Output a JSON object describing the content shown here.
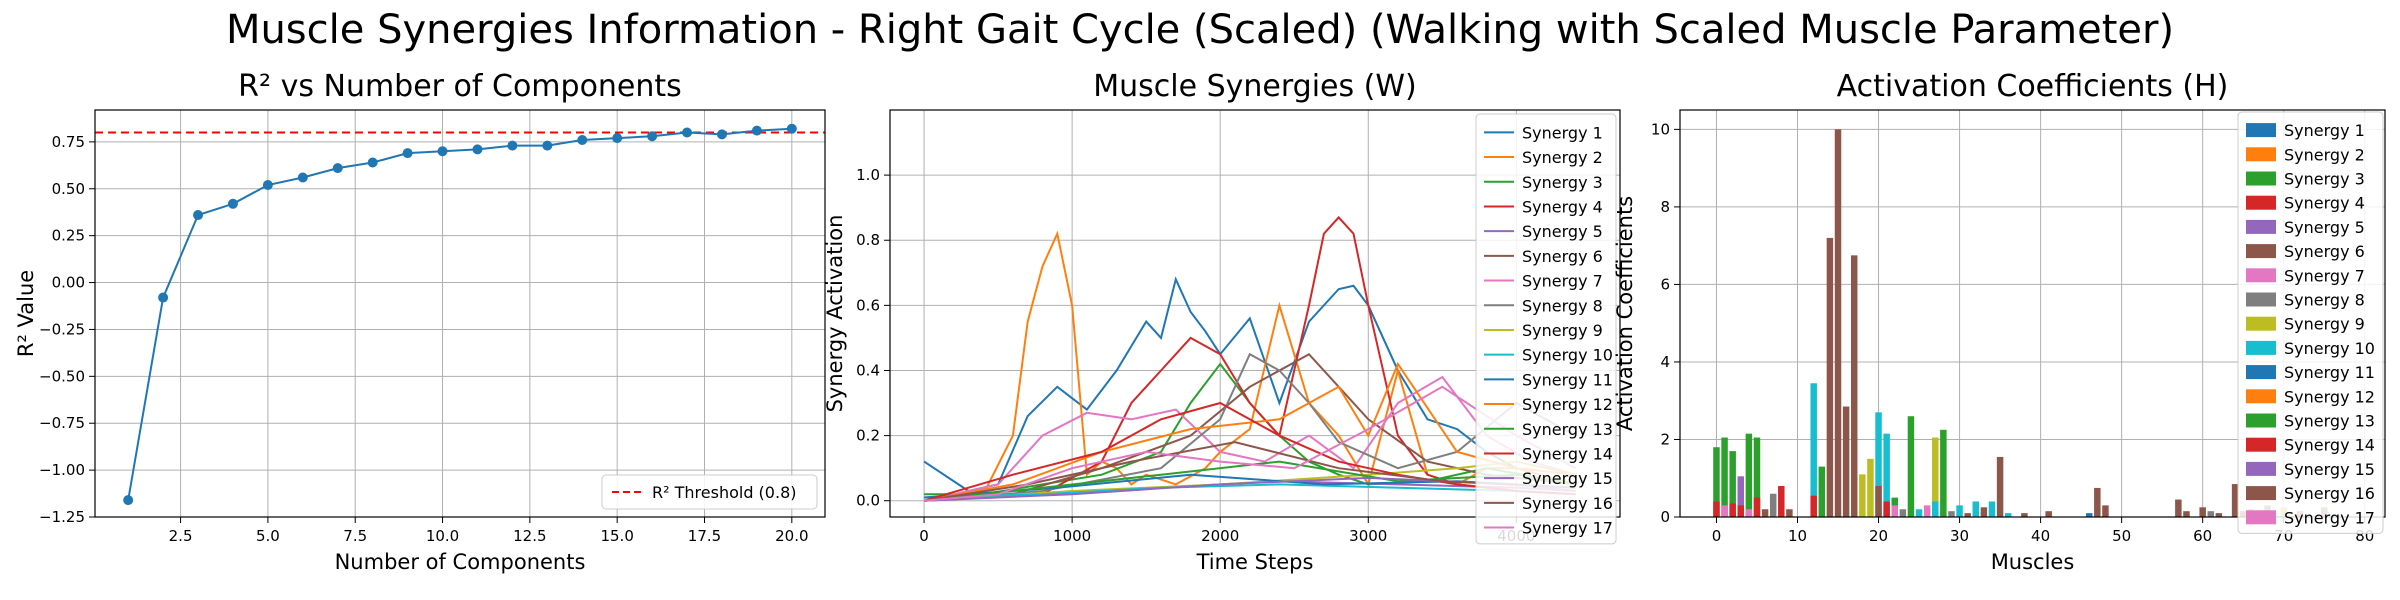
{
  "figure_title": "Muscle Synergies Information - Right Gait Cycle (Scaled) (Walking with Scaled Muscle Parameter)",
  "colors": [
    "#1f77b4",
    "#ff7f0e",
    "#2ca02c",
    "#d62728",
    "#9467bd",
    "#8c564b",
    "#e377c2",
    "#7f7f7f",
    "#bcbd22",
    "#17becf"
  ],
  "chart_data": [
    {
      "type": "line",
      "title": "R² vs Number of Components",
      "xlabel": "Number of Components",
      "ylabel": "R² Value",
      "xlim": [
        0.05,
        20.95
      ],
      "ylim": [
        -1.25,
        0.92
      ],
      "xticks": [
        2.5,
        5.0,
        7.5,
        10.0,
        12.5,
        15.0,
        17.5,
        20.0
      ],
      "xtick_labels": [
        "2.5",
        "5.0",
        "7.5",
        "10.0",
        "12.5",
        "15.0",
        "17.5",
        "20.0"
      ],
      "yticks": [
        -1.25,
        -1.0,
        -0.75,
        -0.5,
        -0.25,
        0.0,
        0.25,
        0.5,
        0.75
      ],
      "ytick_labels": [
        "−1.25",
        "−1.00",
        "−0.75",
        "−0.50",
        "−0.25",
        "0.00",
        "0.25",
        "0.50",
        "0.75"
      ],
      "grid": true,
      "x": [
        1,
        2,
        3,
        4,
        5,
        6,
        7,
        8,
        9,
        10,
        11,
        12,
        13,
        14,
        15,
        16,
        17,
        18,
        19,
        20
      ],
      "y": [
        -1.16,
        -0.08,
        0.36,
        0.42,
        0.52,
        0.56,
        0.61,
        0.64,
        0.69,
        0.7,
        0.71,
        0.73,
        0.73,
        0.76,
        0.77,
        0.78,
        0.8,
        0.79,
        0.81,
        0.82
      ],
      "threshold": {
        "value": 0.8,
        "label": "R² Threshold (0.8)",
        "color": "#ff0000"
      },
      "legend_placement": "bottom-right"
    },
    {
      "type": "line",
      "title": "Muscle Synergies (W)",
      "xlabel": "Time Steps",
      "ylabel": "Synergy Activation",
      "xlim": [
        -230,
        4700
      ],
      "ylim": [
        -0.05,
        1.2
      ],
      "xticks": [
        0,
        1000,
        2000,
        3000,
        4000
      ],
      "xtick_labels": [
        "0",
        "1000",
        "2000",
        "3000",
        "4000"
      ],
      "yticks": [
        0.0,
        0.2,
        0.4,
        0.6,
        0.8,
        1.0
      ],
      "ytick_labels": [
        "0.0",
        "0.2",
        "0.4",
        "0.6",
        "0.8",
        "1.0"
      ],
      "grid": true,
      "legend_placement": "top-right",
      "series": [
        {
          "name": "Synergy 1",
          "x": [
            0,
            300,
            500,
            700,
            900,
            1100,
            1300,
            1500,
            1600,
            1700,
            1800,
            1900,
            2000,
            2200,
            2400,
            2600,
            2800,
            2900,
            3000,
            3200,
            3400,
            3600,
            3800,
            4000,
            4400
          ],
          "y": [
            0.12,
            0.03,
            0.05,
            0.26,
            0.35,
            0.28,
            0.4,
            0.55,
            0.5,
            0.68,
            0.58,
            0.52,
            0.45,
            0.56,
            0.3,
            0.55,
            0.65,
            0.66,
            0.6,
            0.4,
            0.25,
            0.22,
            0.15,
            0.1,
            0.05
          ]
        },
        {
          "name": "Synergy 2",
          "x": [
            0,
            400,
            600,
            700,
            800,
            900,
            1000,
            1100,
            1200,
            1300,
            1400,
            1500,
            1700,
            1900,
            2000,
            2200,
            2400,
            2600,
            2800,
            3000,
            3200,
            3400,
            3600,
            3800,
            4000,
            4400
          ],
          "y": [
            0.0,
            0.02,
            0.2,
            0.55,
            0.72,
            0.82,
            0.6,
            0.08,
            0.12,
            0.1,
            0.05,
            0.08,
            0.05,
            0.1,
            0.15,
            0.22,
            0.6,
            0.3,
            0.2,
            0.05,
            0.4,
            0.08,
            0.05,
            0.1,
            0.1,
            0.05
          ]
        },
        {
          "name": "Synergy 3",
          "x": [
            0,
            400,
            800,
            1200,
            1600,
            1800,
            2000,
            2200,
            2400,
            2600,
            2800,
            3000,
            3400,
            3800,
            4400
          ],
          "y": [
            0.02,
            0.02,
            0.05,
            0.08,
            0.15,
            0.3,
            0.42,
            0.3,
            0.2,
            0.12,
            0.08,
            0.05,
            0.06,
            0.1,
            0.05
          ]
        },
        {
          "name": "Synergy 4",
          "x": [
            0,
            400,
            800,
            1200,
            1400,
            1600,
            1800,
            2000,
            2200,
            2400,
            2600,
            2700,
            2800,
            2900,
            3000,
            3200,
            3400,
            3600,
            4000,
            4400
          ],
          "y": [
            0.0,
            0.01,
            0.02,
            0.12,
            0.3,
            0.4,
            0.5,
            0.45,
            0.3,
            0.2,
            0.6,
            0.82,
            0.87,
            0.82,
            0.6,
            0.2,
            0.08,
            0.05,
            0.03,
            0.02
          ]
        },
        {
          "name": "Synergy 5",
          "x": [
            0,
            800,
            1600,
            2400,
            3200,
            4000,
            4400
          ],
          "y": [
            0.0,
            0.02,
            0.04,
            0.06,
            0.05,
            0.04,
            0.03
          ]
        },
        {
          "name": "Synergy 6",
          "x": [
            0,
            600,
            1200,
            1800,
            2200,
            2600,
            3000,
            3400,
            3800,
            4400
          ],
          "y": [
            0.0,
            0.02,
            0.1,
            0.2,
            0.35,
            0.45,
            0.25,
            0.12,
            0.08,
            0.05
          ]
        },
        {
          "name": "Synergy 7",
          "x": [
            0,
            500,
            800,
            1100,
            1400,
            1700,
            2000,
            2300,
            2600,
            2900,
            3200,
            3500,
            3800,
            4100,
            4400
          ],
          "y": [
            0.0,
            0.05,
            0.2,
            0.27,
            0.25,
            0.28,
            0.15,
            0.12,
            0.2,
            0.1,
            0.3,
            0.38,
            0.2,
            0.12,
            0.08
          ]
        },
        {
          "name": "Synergy 8",
          "x": [
            0,
            800,
            1600,
            2000,
            2200,
            2400,
            2600,
            2800,
            3200,
            3600,
            4000,
            4400
          ],
          "y": [
            0.0,
            0.03,
            0.1,
            0.25,
            0.45,
            0.4,
            0.3,
            0.18,
            0.1,
            0.15,
            0.3,
            0.2
          ]
        },
        {
          "name": "Synergy 9",
          "x": [
            0,
            1000,
            2000,
            3000,
            3600,
            4000,
            4400
          ],
          "y": [
            0.0,
            0.03,
            0.05,
            0.08,
            0.1,
            0.12,
            0.08
          ]
        },
        {
          "name": "Synergy 10",
          "x": [
            0,
            800,
            1600,
            2400,
            3200,
            4000,
            4400
          ],
          "y": [
            0.01,
            0.02,
            0.04,
            0.05,
            0.04,
            0.03,
            0.02
          ]
        },
        {
          "name": "Synergy 11",
          "x": [
            0,
            900,
            1800,
            2700,
            3600,
            4400
          ],
          "y": [
            0.01,
            0.04,
            0.08,
            0.05,
            0.06,
            0.04
          ]
        },
        {
          "name": "Synergy 12",
          "x": [
            0,
            600,
            1200,
            1800,
            2400,
            2800,
            3000,
            3200,
            3600,
            4000,
            4400
          ],
          "y": [
            0.0,
            0.05,
            0.15,
            0.22,
            0.25,
            0.35,
            0.2,
            0.42,
            0.15,
            0.1,
            0.08
          ]
        },
        {
          "name": "Synergy 13",
          "x": [
            0,
            800,
            1600,
            2400,
            3200,
            4000,
            4400
          ],
          "y": [
            0.0,
            0.04,
            0.08,
            0.12,
            0.06,
            0.08,
            0.05
          ]
        },
        {
          "name": "Synergy 14",
          "x": [
            0,
            600,
            1200,
            1600,
            2000,
            2400,
            2800,
            3200,
            3600,
            4000,
            4400
          ],
          "y": [
            0.0,
            0.08,
            0.15,
            0.25,
            0.3,
            0.2,
            0.12,
            0.08,
            0.05,
            0.03,
            0.02
          ]
        },
        {
          "name": "Synergy 15",
          "x": [
            0,
            1000,
            2000,
            3000,
            4000,
            4400
          ],
          "y": [
            0.0,
            0.02,
            0.05,
            0.07,
            0.05,
            0.03
          ]
        },
        {
          "name": "Synergy 16",
          "x": [
            0,
            700,
            1400,
            2100,
            2800,
            3500,
            4400
          ],
          "y": [
            0.0,
            0.05,
            0.12,
            0.18,
            0.1,
            0.06,
            0.04
          ]
        },
        {
          "name": "Synergy 17",
          "x": [
            0,
            500,
            1000,
            1500,
            2000,
            2500,
            3000,
            3500,
            4000,
            4400
          ],
          "y": [
            0.0,
            0.02,
            0.1,
            0.15,
            0.12,
            0.1,
            0.22,
            0.35,
            0.2,
            0.1
          ]
        }
      ]
    },
    {
      "type": "bar",
      "title": "Activation Coefficients (H)",
      "xlabel": "Muscles",
      "ylabel": "Activation Coefficients",
      "xlim": [
        -4.5,
        82.5
      ],
      "ylim": [
        0,
        10.5
      ],
      "xticks": [
        0,
        10,
        20,
        30,
        40,
        50,
        60,
        70,
        80
      ],
      "xtick_labels": [
        "0",
        "10",
        "20",
        "30",
        "40",
        "50",
        "60",
        "70",
        "80"
      ],
      "yticks": [
        0,
        2,
        4,
        6,
        8,
        10
      ],
      "ytick_labels": [
        "0",
        "2",
        "4",
        "6",
        "8",
        "10"
      ],
      "grid": true,
      "legend_placement": "top-right",
      "series_names": [
        "Synergy 1",
        "Synergy 2",
        "Synergy 3",
        "Synergy 4",
        "Synergy 5",
        "Synergy 6",
        "Synergy 7",
        "Synergy 8",
        "Synergy 9",
        "Synergy 10",
        "Synergy 11",
        "Synergy 12",
        "Synergy 13",
        "Synergy 14",
        "Synergy 15",
        "Synergy 16",
        "Synergy 17"
      ],
      "bars": [
        {
          "m": 0,
          "s": 2,
          "v": 1.8
        },
        {
          "m": 0,
          "s": 3,
          "v": 0.4
        },
        {
          "m": 1,
          "s": 2,
          "v": 2.05
        },
        {
          "m": 1,
          "s": 6,
          "v": 0.3
        },
        {
          "m": 2,
          "s": 2,
          "v": 1.7
        },
        {
          "m": 2,
          "s": 3,
          "v": 0.35
        },
        {
          "m": 3,
          "s": 4,
          "v": 1.05
        },
        {
          "m": 3,
          "s": 3,
          "v": 0.3
        },
        {
          "m": 4,
          "s": 2,
          "v": 2.15
        },
        {
          "m": 4,
          "s": 6,
          "v": 0.2
        },
        {
          "m": 5,
          "s": 2,
          "v": 2.05
        },
        {
          "m": 5,
          "s": 3,
          "v": 0.5
        },
        {
          "m": 6,
          "s": 5,
          "v": 0.2
        },
        {
          "m": 7,
          "s": 7,
          "v": 0.6
        },
        {
          "m": 8,
          "s": 3,
          "v": 0.8
        },
        {
          "m": 9,
          "s": 5,
          "v": 0.2
        },
        {
          "m": 12,
          "s": 9,
          "v": 3.45
        },
        {
          "m": 12,
          "s": 3,
          "v": 0.55
        },
        {
          "m": 13,
          "s": 2,
          "v": 1.3
        },
        {
          "m": 14,
          "s": 5,
          "v": 7.2
        },
        {
          "m": 15,
          "s": 5,
          "v": 10.0
        },
        {
          "m": 16,
          "s": 5,
          "v": 2.85
        },
        {
          "m": 17,
          "s": 5,
          "v": 6.75
        },
        {
          "m": 18,
          "s": 8,
          "v": 1.1
        },
        {
          "m": 19,
          "s": 8,
          "v": 1.5
        },
        {
          "m": 20,
          "s": 9,
          "v": 2.7
        },
        {
          "m": 20,
          "s": 5,
          "v": 0.8
        },
        {
          "m": 21,
          "s": 9,
          "v": 2.15
        },
        {
          "m": 21,
          "s": 3,
          "v": 0.4
        },
        {
          "m": 22,
          "s": 2,
          "v": 0.5
        },
        {
          "m": 22,
          "s": 6,
          "v": 0.3
        },
        {
          "m": 23,
          "s": 7,
          "v": 0.2
        },
        {
          "m": 24,
          "s": 2,
          "v": 2.6
        },
        {
          "m": 25,
          "s": 9,
          "v": 0.2
        },
        {
          "m": 26,
          "s": 6,
          "v": 0.3
        },
        {
          "m": 27,
          "s": 8,
          "v": 2.05
        },
        {
          "m": 27,
          "s": 9,
          "v": 0.4
        },
        {
          "m": 28,
          "s": 2,
          "v": 2.25
        },
        {
          "m": 29,
          "s": 7,
          "v": 0.15
        },
        {
          "m": 30,
          "s": 9,
          "v": 0.3
        },
        {
          "m": 31,
          "s": 5,
          "v": 0.1
        },
        {
          "m": 32,
          "s": 9,
          "v": 0.4
        },
        {
          "m": 33,
          "s": 5,
          "v": 0.25
        },
        {
          "m": 34,
          "s": 9,
          "v": 0.4
        },
        {
          "m": 35,
          "s": 5,
          "v": 1.55
        },
        {
          "m": 36,
          "s": 9,
          "v": 0.1
        },
        {
          "m": 38,
          "s": 5,
          "v": 0.1
        },
        {
          "m": 41,
          "s": 5,
          "v": 0.15
        },
        {
          "m": 46,
          "s": 0,
          "v": 0.1
        },
        {
          "m": 47,
          "s": 5,
          "v": 0.75
        },
        {
          "m": 48,
          "s": 5,
          "v": 0.3
        },
        {
          "m": 57,
          "s": 5,
          "v": 0.45
        },
        {
          "m": 58,
          "s": 5,
          "v": 0.15
        },
        {
          "m": 60,
          "s": 5,
          "v": 0.25
        },
        {
          "m": 61,
          "s": 7,
          "v": 0.15
        },
        {
          "m": 62,
          "s": 5,
          "v": 0.1
        },
        {
          "m": 64,
          "s": 5,
          "v": 0.85
        },
        {
          "m": 65,
          "s": 5,
          "v": 0.15
        },
        {
          "m": 66,
          "s": 5,
          "v": 0.2
        },
        {
          "m": 67,
          "s": 0,
          "v": 0.15
        },
        {
          "m": 68,
          "s": 5,
          "v": 0.3
        },
        {
          "m": 70,
          "s": 8,
          "v": 0.25
        },
        {
          "m": 72,
          "s": 5,
          "v": 0.15
        },
        {
          "m": 75,
          "s": 5,
          "v": 0.25
        }
      ]
    }
  ]
}
